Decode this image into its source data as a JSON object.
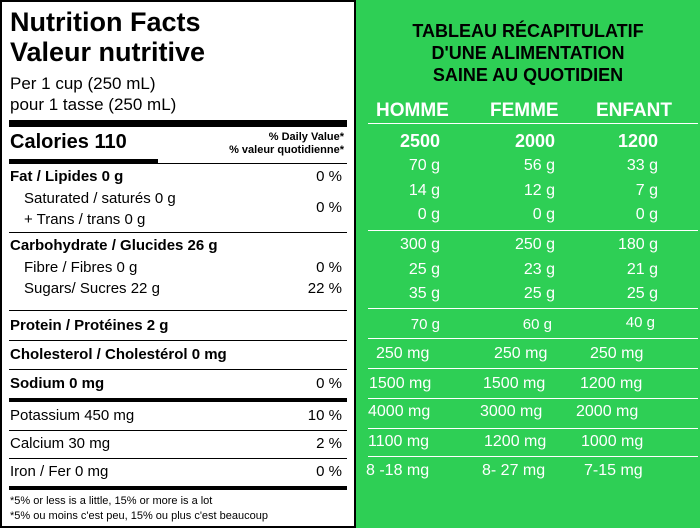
{
  "label": {
    "title_en": "Nutrition Facts",
    "title_fr": "Valeur nutritive",
    "serving_en": "Per 1 cup (250 mL)",
    "serving_fr": "pour 1 tasse (250 mL)",
    "calories": "Calories 110",
    "dv_en": "% Daily Value*",
    "dv_fr": "% valeur quotidienne*",
    "rows": [
      {
        "text": "Fat / Lipides 0 g",
        "pct": "0 %"
      },
      {
        "text": "Saturated / saturés 0 g",
        "pct": "0 %"
      },
      {
        "text": "+ Trans / trans 0 g"
      },
      {
        "text": "Carbohydrate / Glucides 26 g"
      },
      {
        "text": "Fibre / Fibres 0 g",
        "pct": "0 %"
      },
      {
        "text": "Sugars/ Sucres 22 g",
        "pct": "22 %"
      },
      {
        "text": "Protein / Protéines 2 g"
      },
      {
        "text": "Cholesterol / Cholestérol 0 mg"
      },
      {
        "text": "Sodium 0 mg",
        "pct": "0 %"
      },
      {
        "text": "Potassium 450 mg",
        "pct": "10 %"
      },
      {
        "text": "Calcium 30 mg",
        "pct": "2 %"
      },
      {
        "text": "Iron / Fer 0 mg",
        "pct": "0 %"
      }
    ],
    "footnote_en": "*5% or less is a little, 15% or more is a lot",
    "footnote_fr": "*5% ou moins c'est peu, 15% ou plus c'est beaucoup"
  },
  "summary": {
    "title_line1": "TABLEAU RÉCAPITULATIF",
    "title_line2": "D'UNE ALIMENTATION",
    "title_line3": "SAINE AU QUOTIDIEN",
    "columns": [
      "HOMME",
      "FEMME",
      "ENFANT"
    ],
    "rows": [
      [
        "2500",
        "2000",
        "1200"
      ],
      [
        "70 g",
        "56 g",
        "33 g"
      ],
      [
        "14 g",
        "12 g",
        "7 g"
      ],
      [
        "0 g",
        "0 g",
        "0 g"
      ],
      [
        "300 g",
        "250 g",
        "180 g"
      ],
      [
        "25 g",
        "23 g",
        "21 g"
      ],
      [
        "35 g",
        "25 g",
        "25 g"
      ],
      [
        "70 g",
        "60 g",
        "40 g"
      ],
      [
        "250 mg",
        "250 mg",
        "250 mg"
      ],
      [
        "1500 mg",
        "1500 mg",
        "1200 mg"
      ],
      [
        "4000 mg",
        "3000 mg",
        "2000 mg"
      ],
      [
        "1100 mg",
        "1200 mg",
        "1000 mg"
      ],
      [
        "8 -18 mg",
        "8- 27 mg",
        "7-15 mg"
      ]
    ]
  }
}
